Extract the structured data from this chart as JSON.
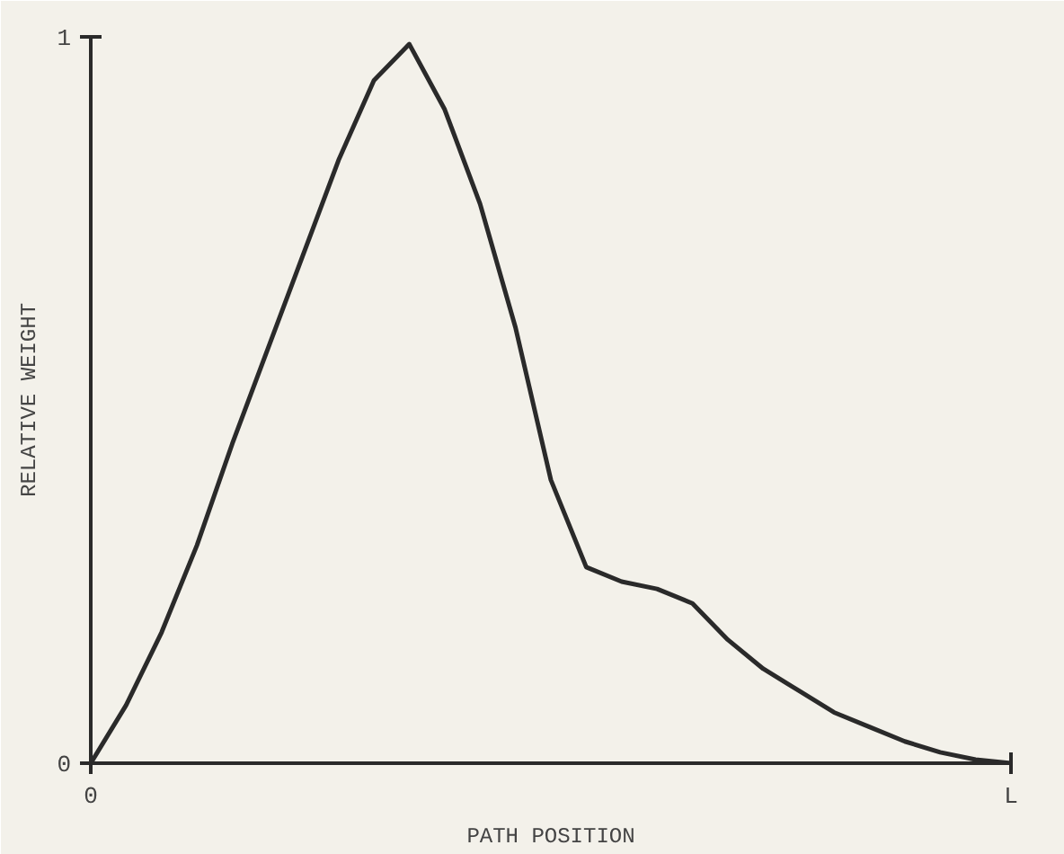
{
  "chart_data": {
    "type": "line",
    "xlabel": "PATH POSITION",
    "ylabel": "RELATIVE WEIGHT",
    "categories": [
      "0",
      null,
      null,
      null,
      null,
      null,
      null,
      null,
      null,
      null,
      null,
      null,
      null,
      null,
      null,
      null,
      null,
      null,
      null,
      null,
      null,
      null,
      null,
      null,
      null,
      null,
      "L"
    ],
    "series": [
      {
        "color": "#2a2a2a",
        "values": [
          0,
          0.08,
          0.18,
          0.3,
          0.44,
          0.57,
          0.7,
          0.83,
          0.94,
          0.99,
          0.9,
          0.77,
          0.6,
          0.39,
          0.27,
          0.25,
          0.24,
          0.22,
          0.17,
          0.13,
          0.1,
          0.07,
          0.05,
          0.03,
          0.015,
          0.005,
          0
        ]
      }
    ],
    "ylim": [
      0,
      1
    ],
    "yticks": [
      0,
      1
    ],
    "marker": "none",
    "line_style": "solid"
  }
}
